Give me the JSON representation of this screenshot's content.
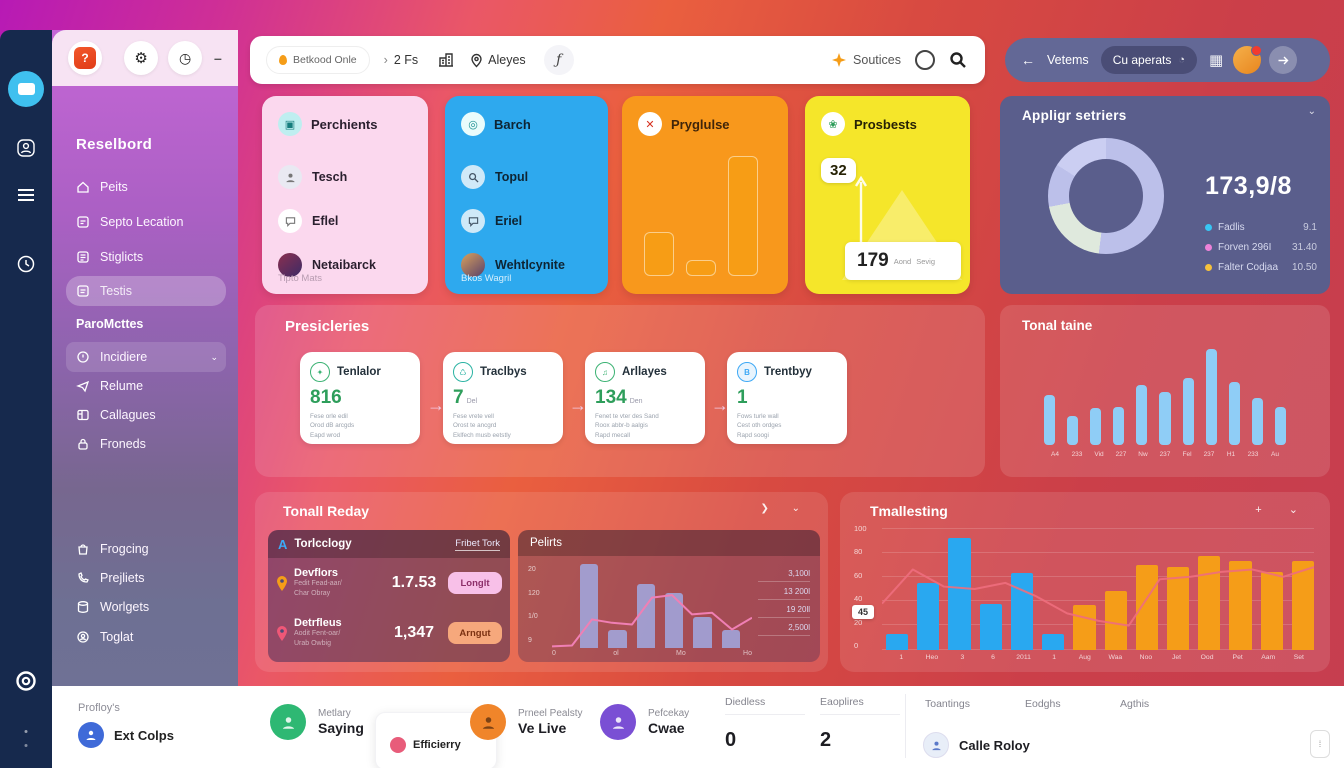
{
  "topbar": {
    "status_pill": "Betkood Onle",
    "breadcrumb_gt": "›",
    "breadcrumb": "2 Fs",
    "location": "Aleyes",
    "fx": "ƒ",
    "sources_label": "Soutices",
    "panel": {
      "back": "←",
      "title": "Vetems",
      "pill": "Cu aperats",
      "clock": "◔",
      "grid": "▦"
    }
  },
  "sidebar": {
    "title": "Reselbord",
    "items": [
      "Peits",
      "Septo Lecation",
      "Stiglicts",
      "Testis"
    ],
    "section2": "ParoMcttes",
    "items2": [
      "Incidiere",
      "Relume",
      "Callagues",
      "Froneds"
    ],
    "items3": [
      "Frogcing",
      "Prejliets",
      "Worlgets",
      "Toglat"
    ],
    "strip_app_glyph": "?",
    "strip_gear": "⚙",
    "strip_clock": "◷",
    "strip_minus": "–",
    "footer_label": "Profloy's",
    "user_name": "Ext Colps"
  },
  "cards": {
    "perchients": {
      "title": "Perchients",
      "items": [
        "Tesch",
        "Eflel",
        "Netaibarck"
      ],
      "footer": "Tipto Mats"
    },
    "barch": {
      "title": "Barch",
      "items": [
        "Topul",
        "Eriel",
        "Wehtlcynite"
      ],
      "footer": "Bkos Wagril"
    },
    "pryglulse": {
      "title": "Pryglulse",
      "chart": {
        "type": "bar",
        "values": [
          34,
          12,
          92
        ],
        "max": 100,
        "color": "#f79d15"
      }
    },
    "prosbests": {
      "title": "Prosbests",
      "badge": "32",
      "value": "179",
      "unit_a": "Aond",
      "unit_b": "Sevig"
    }
  },
  "appligr": {
    "title": "Appligr setriers",
    "chevron": "⌄",
    "total": "173,9/8",
    "legend": [
      {
        "label": "Fadlis",
        "value": "9.1",
        "color": "#38c6f4"
      },
      {
        "label": "Forven 296I",
        "value": "31.40",
        "color": "#ee82d9"
      },
      {
        "label": "Falter Codjaa",
        "value": "10.50",
        "color": "#f6c23c"
      }
    ],
    "donut": {
      "type": "donut",
      "segments": [
        {
          "color": "#bcc0ea",
          "to": 52
        },
        {
          "color": "#dfe9dd",
          "to": 72
        },
        {
          "color": "#bcc0ea",
          "to": 84
        },
        {
          "color": "#cbcef2",
          "to": 100
        }
      ]
    }
  },
  "presicleries": {
    "title": "Presicleries",
    "arrow": "→",
    "cards": [
      {
        "title": "Tenlalor",
        "value": "816",
        "unit": "",
        "l1": "Fese orle edil",
        "l2": "Orod dB arcgds",
        "l3": "Eapd wrod"
      },
      {
        "title": "Traclbys",
        "value": "7",
        "unit": "Del",
        "l1": "Fese vrete vell",
        "l2": "Orost te ancgrd",
        "l3": "Eklfech musb eetstly"
      },
      {
        "title": "Arllayes",
        "value": "134",
        "unit": "Den",
        "l1": "Fenet te vter des Sand",
        "l2": "Roox abbr-b aalgis",
        "l3": "Rapd mecall"
      },
      {
        "title": "Trentbyy",
        "value": "1",
        "unit": "",
        "l1": "Fows turle wall",
        "l2": "Cest oth ordges",
        "l3": "Rapd soogi"
      }
    ]
  },
  "tonal_taine": {
    "title": "Tonal taine",
    "chart": {
      "type": "bar",
      "values": [
        52,
        30,
        39,
        40,
        62,
        55,
        70,
        100,
        66,
        49,
        40
      ],
      "max": 100,
      "color": "#8fcdf6",
      "x_labels": [
        "A4",
        "233",
        "Vid",
        "227",
        "Nw",
        "237",
        "Fel",
        "237",
        "H1",
        "233",
        "Au"
      ]
    }
  },
  "tonall_reday": {
    "title": "Tonall Reday",
    "header_icons": "❯ ⌄",
    "topology": {
      "icon": "A",
      "title": "Torlcclogy",
      "link": "Fribet Tork",
      "rows": [
        {
          "name": "Devflors",
          "sub1": "Fedit Fead-aar/",
          "sub2": "Char Obray",
          "value": "1.7.53",
          "badge": "Longlt"
        },
        {
          "name": "Detrfleus",
          "sub1": "Aodit Fent-oar/",
          "sub2": "Urab Owbig",
          "value": "1,347",
          "badge": "Arngut"
        }
      ]
    }
  },
  "pelirts": {
    "title": "Pelirts",
    "chart": {
      "type": "bar+line",
      "values": [
        100,
        22,
        76,
        66,
        37,
        22
      ],
      "max": 100,
      "color": "rgba(160,175,235,0.8)",
      "line": {
        "points": [
          2,
          3,
          34,
          30,
          28,
          60,
          63,
          40,
          42,
          22,
          36
        ],
        "color": "#f07fb4"
      },
      "y_ticks": [
        "20",
        "120",
        "1/0",
        "9"
      ],
      "x_labels": [
        "0",
        "ol",
        "Mo",
        "Ho"
      ],
      "right_values": [
        "3,100l",
        "13 200l",
        "19 20ll",
        "2,500l"
      ]
    }
  },
  "tmallesting": {
    "title": "Tmallesting",
    "header_icons": "+ ⌄",
    "tag": "45",
    "chart": {
      "type": "bar+line",
      "values": [
        13,
        55,
        92,
        38,
        63,
        13,
        37,
        48,
        70,
        68,
        77,
        73,
        64,
        73
      ],
      "max": 100,
      "colors": [
        "#29a8f0",
        "#29a8f0",
        "#29a8f0",
        "#29a8f0",
        "#29a8f0",
        "#29a8f0",
        "#f59d18",
        "#f59d18",
        "#f59d18",
        "#f59d18",
        "#f59d18",
        "#f59d18",
        "#f59d18",
        "#f59d18"
      ],
      "line": {
        "points": [
          38,
          66,
          52,
          50,
          55,
          44,
          30,
          24,
          20,
          58,
          60,
          64,
          66,
          60,
          68
        ],
        "color": "rgba(238,110,125,0.9)"
      },
      "y_ticks": [
        "100",
        "80",
        "60",
        "40",
        "20",
        "0"
      ],
      "x_labels": [
        "1",
        "Heo",
        "3",
        "6",
        "2011",
        "1",
        "Aug",
        "Waa",
        "Noo",
        "Jet",
        "Ood",
        "Pet",
        "Aam",
        "Set"
      ]
    }
  },
  "footer": {
    "people": [
      {
        "sub": "Metlary",
        "name": "Saying",
        "color": "#2eb873"
      },
      {
        "sub": "Prneel Pealsty",
        "name": "Ve Live",
        "color": "#f0852a"
      },
      {
        "sub": "Pefcekay",
        "name": "Cwae",
        "color": "#7a4fd4"
      }
    ],
    "card_label": "Efficierry",
    "stats": [
      {
        "label": "Diedless",
        "value": "0"
      },
      {
        "label": "Eaoplires",
        "value": "2"
      }
    ],
    "table_headers": [
      "Toantings",
      "Eodghs",
      "Agthis"
    ],
    "row_name": "Calle Roloy"
  }
}
